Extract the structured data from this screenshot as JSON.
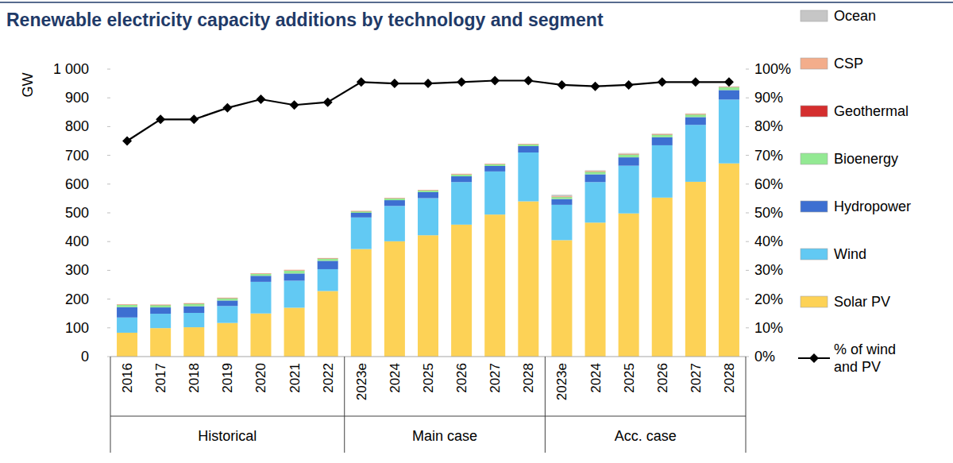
{
  "chart_data": {
    "type": "bar",
    "title": "Renewable electricity capacity additions by technology and segment",
    "y_label": "GW",
    "stacked": true,
    "grid": false,
    "legend": "right",
    "categories": [
      "2016",
      "2017",
      "2018",
      "2019",
      "2020",
      "2021",
      "2022",
      "2023e",
      "2024",
      "2025",
      "2026",
      "2027",
      "2028",
      "2023e",
      "2024",
      "2025",
      "2026",
      "2027",
      "2028"
    ],
    "category_groups": [
      {
        "label": "Historical",
        "count": 7
      },
      {
        "label": "Main case",
        "count": 6
      },
      {
        "label": "Acc. case",
        "count": 6
      }
    ],
    "ylim": [
      0,
      1000
    ],
    "yticks": [
      0,
      100,
      200,
      300,
      400,
      500,
      600,
      700,
      800,
      900,
      {
        "value": 1000,
        "label": "1 000"
      }
    ],
    "y2lim": [
      0,
      100
    ],
    "y2ticks": [
      {
        "value": 0,
        "label": "0%"
      },
      {
        "value": 10,
        "label": "10%"
      },
      {
        "value": 20,
        "label": "20%"
      },
      {
        "value": 30,
        "label": "30%"
      },
      {
        "value": 40,
        "label": "40%"
      },
      {
        "value": 50,
        "label": "50%"
      },
      {
        "value": 60,
        "label": "60%"
      },
      {
        "value": 70,
        "label": "70%"
      },
      {
        "value": 80,
        "label": "80%"
      },
      {
        "value": 90,
        "label": "90%"
      },
      {
        "value": 100,
        "label": "100%"
      }
    ],
    "series": [
      {
        "name": "Solar PV",
        "color": "#fdd256",
        "values": [
          83,
          99,
          102,
          117,
          150,
          170,
          228,
          374,
          401,
          422,
          459,
          494,
          540,
          405,
          466,
          498,
          553,
          608,
          672
        ]
      },
      {
        "name": "Wind",
        "color": "#62c9f3",
        "values": [
          53,
          50,
          50,
          59,
          110,
          94,
          76,
          110,
          123,
          129,
          148,
          150,
          170,
          123,
          141,
          166,
          182,
          198,
          222
        ]
      },
      {
        "name": "Hydropower",
        "color": "#3d6fd1",
        "values": [
          36,
          22,
          23,
          19,
          21,
          25,
          29,
          16,
          20,
          21,
          20,
          19,
          22,
          20,
          27,
          29,
          28,
          27,
          33
        ]
      },
      {
        "name": "Bioenergy",
        "color": "#93e993",
        "values": [
          8,
          8,
          9,
          8,
          7,
          10,
          8,
          5,
          6,
          6,
          6,
          6,
          6,
          7,
          9,
          10,
          9,
          9,
          10
        ]
      },
      {
        "name": "Geothermal",
        "color": "#d42e2e",
        "values": [
          1,
          1,
          1,
          1,
          1,
          1,
          1,
          1,
          1,
          1,
          1,
          1,
          1,
          1,
          1,
          1,
          1,
          1,
          1
        ]
      },
      {
        "name": "CSP",
        "color": "#f3ad8b",
        "values": [
          1,
          1,
          1,
          1,
          1,
          2,
          1,
          1,
          1,
          1,
          2,
          1,
          1,
          2,
          2,
          2,
          2,
          2,
          1
        ]
      },
      {
        "name": "Ocean",
        "color": "#c6c6c6",
        "values": [
          0,
          0,
          0,
          0,
          0,
          0,
          0,
          0,
          0,
          0,
          0,
          0,
          0,
          5,
          2,
          2,
          1,
          1,
          1
        ]
      },
      {
        "name": "% of wind and PV",
        "type": "line",
        "axis": "y2",
        "color": "#000000",
        "marker": "diamond",
        "values": [
          75,
          82.5,
          82.5,
          86.5,
          89.5,
          87.5,
          88.5,
          95.5,
          95,
          95,
          95.5,
          96,
          96,
          94.5,
          94,
          94.5,
          95.5,
          95.5,
          95.5
        ]
      }
    ]
  }
}
